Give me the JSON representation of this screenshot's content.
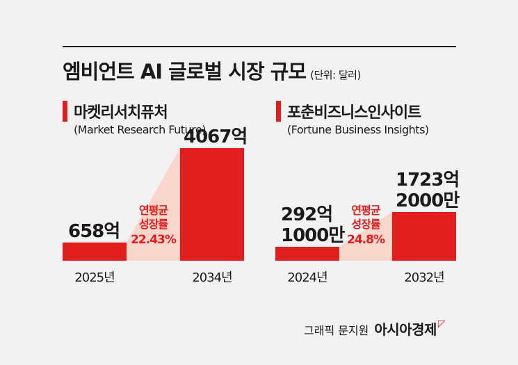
{
  "header": {
    "title": "엠비언트 AI 글로벌 시장 규모",
    "unit": "(단위: 달러)"
  },
  "colors": {
    "bar": "#e01e1e",
    "band": "#f8d6cc",
    "accent_text": "#e01e1e"
  },
  "chart_data": [
    {
      "type": "bar",
      "source": "마켓리서치퓨처",
      "source_en": "(Market Research Future)",
      "categories": [
        "2025년",
        "2034년"
      ],
      "values": [
        658,
        4067
      ],
      "value_labels": [
        [
          "658억"
        ],
        [
          "4067억"
        ]
      ],
      "cagr_label": [
        "연평균",
        "성장률"
      ],
      "cagr_value": "22.43%"
    },
    {
      "type": "bar",
      "source": "포춘비즈니스인사이트",
      "source_en": "(Fortune Business Insights)",
      "categories": [
        "2024년",
        "2032년"
      ],
      "values": [
        292.1,
        1723.2
      ],
      "value_labels": [
        [
          "292억",
          "1000만"
        ],
        [
          "1723억",
          "2000만"
        ]
      ],
      "cagr_label": [
        "연평균",
        "성장률"
      ],
      "cagr_value": "24.8%"
    }
  ],
  "footer": {
    "credit": "그래픽 문지원",
    "brand": "아시아경제"
  }
}
